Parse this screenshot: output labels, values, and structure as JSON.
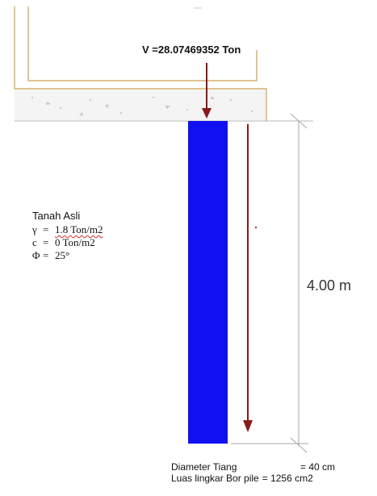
{
  "load": {
    "label": "V =28.07469352 Ton"
  },
  "soil": {
    "title": "Tanah Asli",
    "params": [
      {
        "symbol": "γ",
        "eq": "=",
        "value": "1.8 Ton/m2"
      },
      {
        "symbol": "c",
        "eq": "=",
        "value": "0 Ton/m2"
      },
      {
        "symbol": "Φ",
        "eq": "=",
        "value": "25°"
      }
    ]
  },
  "dimension": {
    "depth_label": "4.00 m"
  },
  "notes": {
    "diameter_label": "Diameter Tiang",
    "diameter_value": "= 40 cm",
    "area_label": "Luas lingkar Bor pile",
    "area_value": "= 1256 cm2"
  },
  "colors": {
    "pile": "#1010f0",
    "arrow": "#8b1a1a",
    "outline": "#c9a14a",
    "concrete_fill": "#f3f3f3",
    "dimension_line": "#b0b0b0"
  }
}
